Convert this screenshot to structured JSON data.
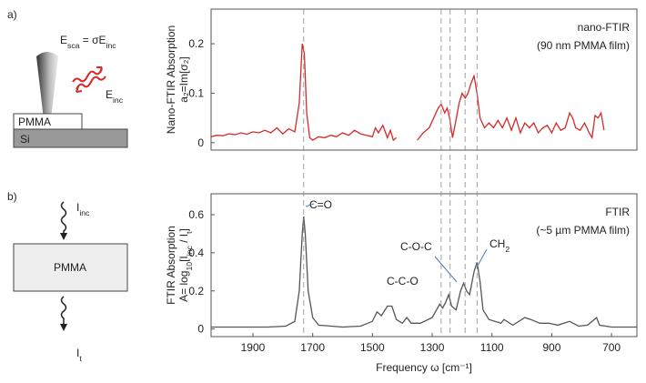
{
  "panel_labels": [
    "a)",
    "b)"
  ],
  "diagram_a": {
    "scattered": [
      {
        "text": "E"
      },
      {
        "text": "sca",
        "sub": true
      },
      {
        "text": " = σE"
      },
      {
        "text": "inc",
        "sub": true
      }
    ],
    "incident": [
      {
        "text": "E"
      },
      {
        "text": "inc",
        "sub": true
      }
    ],
    "film": "PMMA",
    "substrate": "Si"
  },
  "diagram_b": {
    "incident": [
      {
        "text": "I"
      },
      {
        "text": "inc",
        "sub": true
      }
    ],
    "film": "PMMA",
    "transmitted": [
      {
        "text": "I"
      },
      {
        "text": "t",
        "sub": true
      }
    ]
  },
  "chart_data": [
    {
      "type": "line",
      "ylabel": [
        [
          {
            "text": "Nano-FTIR  Absorption"
          }
        ],
        [
          {
            "text": "a₂=Im[σ₂]"
          }
        ]
      ],
      "xlim": [
        2040,
        615
      ],
      "ylim": [
        -0.015,
        0.27
      ],
      "yticks": [
        0,
        0.1,
        0.2
      ],
      "series": [
        {
          "name": "nano-FTIR",
          "color": "#d42a2a",
          "x": [
            2040,
            2020,
            2000,
            1980,
            1960,
            1940,
            1920,
            1900,
            1880,
            1860,
            1840,
            1820,
            1800,
            1780,
            1760,
            1745,
            1735,
            1728,
            1720,
            1710,
            1700,
            1680,
            1660,
            1640,
            1620,
            1600,
            1580,
            1560,
            1540,
            1520,
            1500,
            1490,
            1480,
            1465,
            1450,
            1440,
            1430,
            1420,
            1390,
            1350,
            1330,
            1310,
            1295,
            1280,
            1270,
            1258,
            1250,
            1242,
            1232,
            1222,
            1210,
            1200,
            1190,
            1180,
            1170,
            1160,
            1150,
            1140,
            1125,
            1110,
            1095,
            1080,
            1065,
            1050,
            1035,
            1020,
            1005,
            990,
            975,
            960,
            945,
            930,
            915,
            900,
            885,
            870,
            855,
            840,
            830,
            820,
            805,
            790,
            775,
            765,
            755,
            745,
            735,
            725
          ],
          "values": [
            0.012,
            0.015,
            0.014,
            0.018,
            0.016,
            0.02,
            0.017,
            0.022,
            0.02,
            0.025,
            0.02,
            0.03,
            0.018,
            0.028,
            0.022,
            0.08,
            0.2,
            0.18,
            0.06,
            0.01,
            0.005,
            0.012,
            0.01,
            0.015,
            0.012,
            0.02,
            0.015,
            0.025,
            0.018,
            0.015,
            0.012,
            0.03,
            0.02,
            0.035,
            0.01,
            0.025,
            0.005,
            0.01,
            null,
            0.005,
            0.02,
            0.03,
            0.05,
            0.07,
            0.078,
            0.06,
            0.07,
            0.05,
            0.01,
            0.04,
            0.08,
            0.1,
            0.09,
            0.1,
            0.12,
            0.135,
            0.1,
            0.05,
            0.03,
            0.04,
            0.03,
            0.045,
            0.03,
            0.05,
            0.025,
            0.05,
            0.02,
            0.04,
            0.03,
            0.04,
            0.02,
            0.03,
            0.035,
            0.02,
            0.04,
            0.025,
            0.03,
            0.06,
            0.05,
            0.03,
            0.025,
            0.04,
            0.02,
            0.01,
            0.055,
            0.05,
            0.06,
            0.025
          ]
        }
      ],
      "annotations": [
        "(90 nm PMMA film)"
      ],
      "vlines": [
        1730,
        1270,
        1240,
        1190,
        1150
      ]
    },
    {
      "type": "line",
      "ylabel": [
        [
          {
            "text": "FTIR  Absorption"
          }
        ],
        [
          {
            "text": "A= log"
          },
          {
            "text": "10",
            "sub": true
          },
          {
            "text": "[I"
          },
          {
            "text": "inc",
            "sub": true
          },
          {
            "text": " / I"
          },
          {
            "text": "t",
            "sub": true
          },
          {
            "text": "]"
          }
        ]
      ],
      "xlabel": "Frequency ω [cm⁻¹]",
      "xlim": [
        2040,
        615
      ],
      "ylim": [
        -0.04,
        0.71
      ],
      "xticks": [
        1900,
        1700,
        1500,
        1300,
        1100,
        900,
        700
      ],
      "yticks": [
        0,
        0.2,
        0.4,
        0.6
      ],
      "series": [
        {
          "name": "FTIR",
          "color": "#555555",
          "x": [
            2040,
            1950,
            1850,
            1790,
            1760,
            1745,
            1735,
            1730,
            1725,
            1715,
            1700,
            1680,
            1600,
            1540,
            1500,
            1485,
            1470,
            1450,
            1435,
            1420,
            1400,
            1385,
            1370,
            1340,
            1300,
            1275,
            1265,
            1255,
            1245,
            1235,
            1220,
            1205,
            1195,
            1185,
            1175,
            1160,
            1150,
            1140,
            1130,
            1110,
            1070,
            1060,
            1030,
            990,
            970,
            940,
            910,
            880,
            840,
            810,
            780,
            750,
            740,
            700,
            615
          ],
          "values": [
            0.01,
            0.01,
            0.01,
            0.015,
            0.04,
            0.2,
            0.5,
            0.59,
            0.5,
            0.2,
            0.06,
            0.02,
            0.01,
            0.015,
            0.04,
            0.09,
            0.07,
            0.12,
            0.12,
            0.05,
            0.03,
            0.06,
            0.03,
            0.03,
            0.06,
            0.13,
            0.11,
            0.14,
            0.18,
            0.12,
            0.1,
            0.2,
            0.24,
            0.2,
            0.18,
            0.3,
            0.35,
            0.25,
            0.1,
            0.05,
            0.03,
            0.05,
            0.02,
            0.06,
            0.05,
            0.03,
            0.03,
            0.02,
            0.04,
            0.015,
            0.02,
            0.06,
            0.02,
            0.01,
            0.01
          ]
        }
      ],
      "annotations": [
        "(~5 µm PMMA film)"
      ],
      "peak_labels": [
        [
          {
            "text": "C=O"
          }
        ],
        [
          {
            "text": "C-C-O"
          }
        ],
        [
          {
            "text": "C-O-C"
          }
        ],
        [
          {
            "text": "CH"
          },
          {
            "text": "2",
            "sub": true
          }
        ]
      ]
    }
  ]
}
